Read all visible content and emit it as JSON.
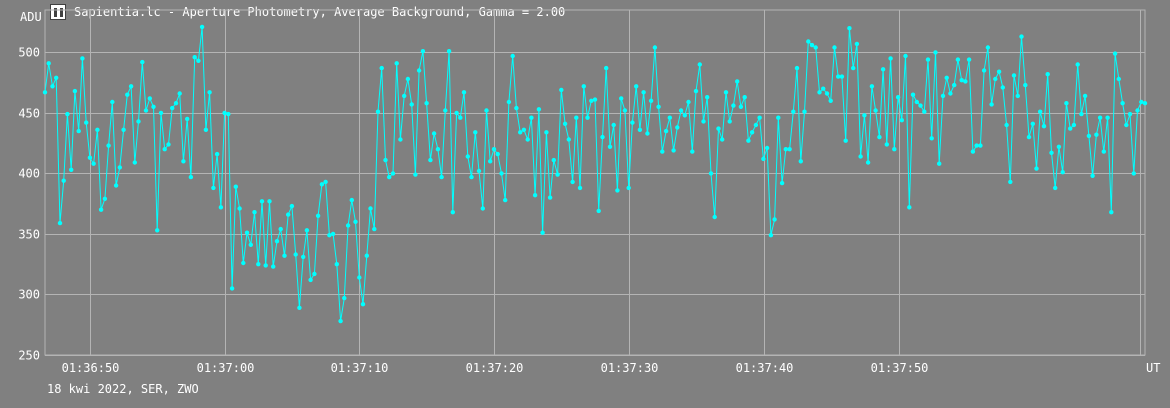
{
  "window": {
    "title": "Sapientia.lc - Aperture Photometry, Average Background, Gamma = 2.00",
    "icon": "app-icon"
  },
  "footer": {
    "text": "18 kwi 2022, SER, ZWO"
  },
  "colors": {
    "background": "#808080",
    "grid": "#b4b4b4",
    "series": "#00ffff",
    "text": "#ffffff"
  },
  "chart_data": {
    "type": "line",
    "title": "",
    "ylabel": "ADU",
    "xlabel": "UT",
    "ylim": [
      250,
      535
    ],
    "xlim": [
      "01:36:46.7",
      "01:38:08.2"
    ],
    "yticks": [
      250,
      300,
      350,
      400,
      450,
      500
    ],
    "xticks": [
      "01:36:50",
      "01:37:00",
      "01:37:10",
      "01:37:20",
      "01:37:30",
      "01:37:40",
      "01:37:50"
    ],
    "grid": true,
    "legend": "none",
    "series": [
      {
        "name": "",
        "values": [
          467,
          491,
          472,
          479,
          359,
          394,
          449,
          403,
          468,
          435,
          495,
          442,
          413,
          408,
          436,
          370,
          379,
          423,
          459,
          390,
          405,
          436,
          465,
          472,
          409,
          443,
          492,
          452,
          462,
          455,
          353,
          450,
          420,
          424,
          454,
          458,
          466,
          410,
          445,
          397,
          496,
          493,
          521,
          436,
          467,
          388,
          416,
          372,
          450,
          449,
          305,
          389,
          371,
          326,
          351,
          341,
          368,
          325,
          377,
          324,
          377,
          323,
          344,
          354,
          332,
          366,
          373,
          333,
          289,
          331,
          353,
          312,
          317,
          365,
          391,
          393,
          349,
          350,
          325,
          278,
          297,
          357,
          378,
          360,
          314,
          292,
          332,
          371,
          354,
          451,
          487,
          411,
          397,
          400,
          491,
          428,
          464,
          478,
          457,
          399,
          485,
          501,
          458,
          411,
          433,
          420,
          397,
          452,
          501,
          368,
          450,
          446,
          467,
          414,
          397,
          434,
          402,
          371,
          452,
          410,
          420,
          416,
          400,
          378,
          459,
          497,
          454,
          434,
          436,
          428,
          446,
          382,
          453,
          351,
          434,
          380,
          411,
          399,
          469,
          441,
          428,
          393,
          446,
          388,
          472,
          446,
          460,
          461,
          369,
          430,
          487,
          422,
          440,
          386,
          462,
          452,
          388,
          442,
          472,
          436,
          467,
          433,
          460,
          504,
          455,
          418,
          435,
          446,
          419,
          438,
          452,
          448,
          459,
          418,
          468,
          490,
          443,
          463,
          400,
          364,
          437,
          428,
          467,
          443,
          456,
          476,
          455,
          463,
          427,
          434,
          440,
          446,
          412,
          421,
          349,
          362,
          446,
          392,
          420,
          420,
          451,
          487,
          410,
          451,
          509,
          506,
          504,
          467,
          470,
          466,
          460,
          504,
          480,
          480,
          427,
          520,
          487,
          507,
          414,
          448,
          409,
          472,
          452,
          430,
          486,
          424,
          495,
          420,
          463,
          444,
          497,
          372,
          465,
          459,
          456,
          451,
          494,
          429,
          500,
          408,
          464,
          479,
          466,
          473,
          494,
          477,
          476,
          494,
          418,
          423,
          423,
          485,
          504,
          457,
          478,
          484,
          471,
          440,
          393,
          481,
          464,
          513,
          473,
          430,
          441,
          404,
          451,
          439,
          482,
          417,
          388,
          422,
          401,
          458,
          437,
          440,
          490,
          449,
          464,
          431,
          398,
          432,
          446,
          418,
          446,
          368,
          499,
          478,
          458,
          440,
          449,
          400,
          452,
          459,
          458
        ]
      }
    ]
  }
}
